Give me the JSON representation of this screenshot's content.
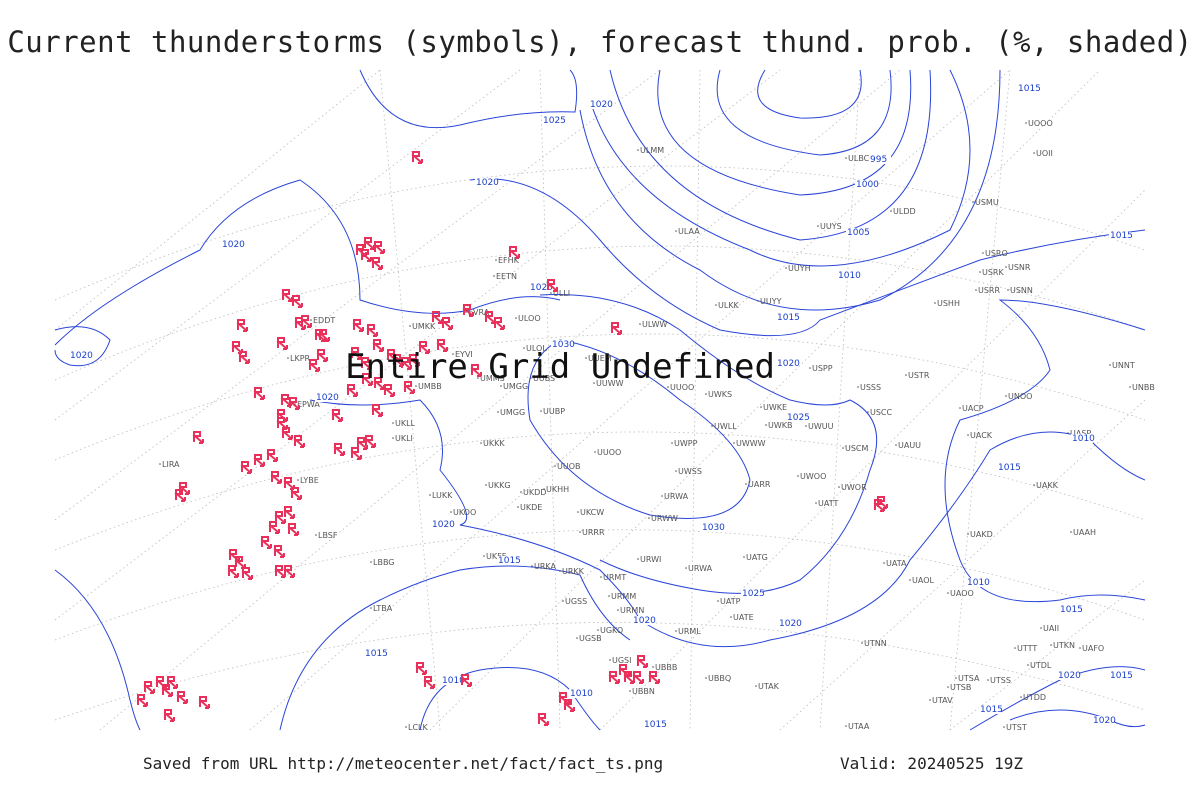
{
  "title": "Current thunderstorms (symbols), forecast thund. prob. (%, shaded)",
  "overlay": "Entire Grid Undefined",
  "footer": {
    "source": "Saved from URL http://meteocenter.net/fact/fact_ts.png",
    "valid": "Valid: 20240525 19Z"
  },
  "isobars": [
    "1020",
    "1025",
    "1015",
    "995",
    "1000",
    "1005",
    "1010",
    "1015",
    "1020",
    "1020",
    "1020",
    "1025",
    "1030",
    "1020",
    "1015",
    "1025",
    "1020",
    "1030",
    "1020",
    "1015",
    "1025",
    "1020",
    "1020",
    "1015",
    "1010",
    "1010",
    "1015",
    "1010",
    "1015",
    "1010",
    "1015",
    "1020",
    "1015",
    "1015",
    "1020"
  ],
  "stations": [
    "ULMM",
    "UOOO",
    "UOII",
    "ULBC",
    "UUYS",
    "ULDD",
    "ULAA",
    "USMU",
    "UUYH",
    "USRO",
    "USRK",
    "USNR",
    "ULKK",
    "UUYY",
    "USRR",
    "USNN",
    "USHH",
    "EFHK",
    "EETN",
    "EVRA",
    "ULOO",
    "ULLI",
    "UMKK",
    "EDDT",
    "ULOL",
    "UUEM",
    "ULWW",
    "EYVI",
    "UMMS",
    "UMGG",
    "UUBS",
    "UUWW",
    "UUOO",
    "UWKS",
    "USPP",
    "USSS",
    "USTR",
    "UNNT",
    "UNBB",
    "UNOO",
    "USCC",
    "UACP",
    "UWKE",
    "UWKB",
    "UWUU",
    "UWLL",
    "UWWW",
    "UACK",
    "UASP",
    "UUBP",
    "UMBB",
    "UKLL",
    "UKLI",
    "UKKK",
    "EPWA",
    "LKPR",
    "UMGG",
    "USCM",
    "UAUU",
    "UUOO",
    "UWPP",
    "UUOB",
    "UWSS",
    "UWOO",
    "UWOR",
    "UAKK",
    "UKKG",
    "UKDD",
    "UKHH",
    "UKOO",
    "LUKK",
    "UKDE",
    "UKCW",
    "URWA",
    "URWW",
    "UARR",
    "UATT",
    "UAKD",
    "UAAH",
    "LBSF",
    "URRR",
    "LIRA",
    "LYBE",
    "LBBG",
    "UKFF",
    "URKA",
    "URKK",
    "URWI",
    "URWA",
    "UATG",
    "UATA",
    "UAOL",
    "UAOO",
    "URMT",
    "URMM",
    "UGSS",
    "URMN",
    "UATP",
    "UATE",
    "LTBA",
    "UGKO",
    "URML",
    "UGSB",
    "UTNN",
    "UAII",
    "UTTT",
    "UTKN",
    "UAFO",
    "LCLK",
    "UTAA",
    "UTSA",
    "UTSB",
    "UTAV",
    "UTDD",
    "UTDL",
    "UTSS",
    "UTST",
    "UBBB",
    "UBBN",
    "UGSI",
    "UTAK",
    "UBBQ"
  ]
}
